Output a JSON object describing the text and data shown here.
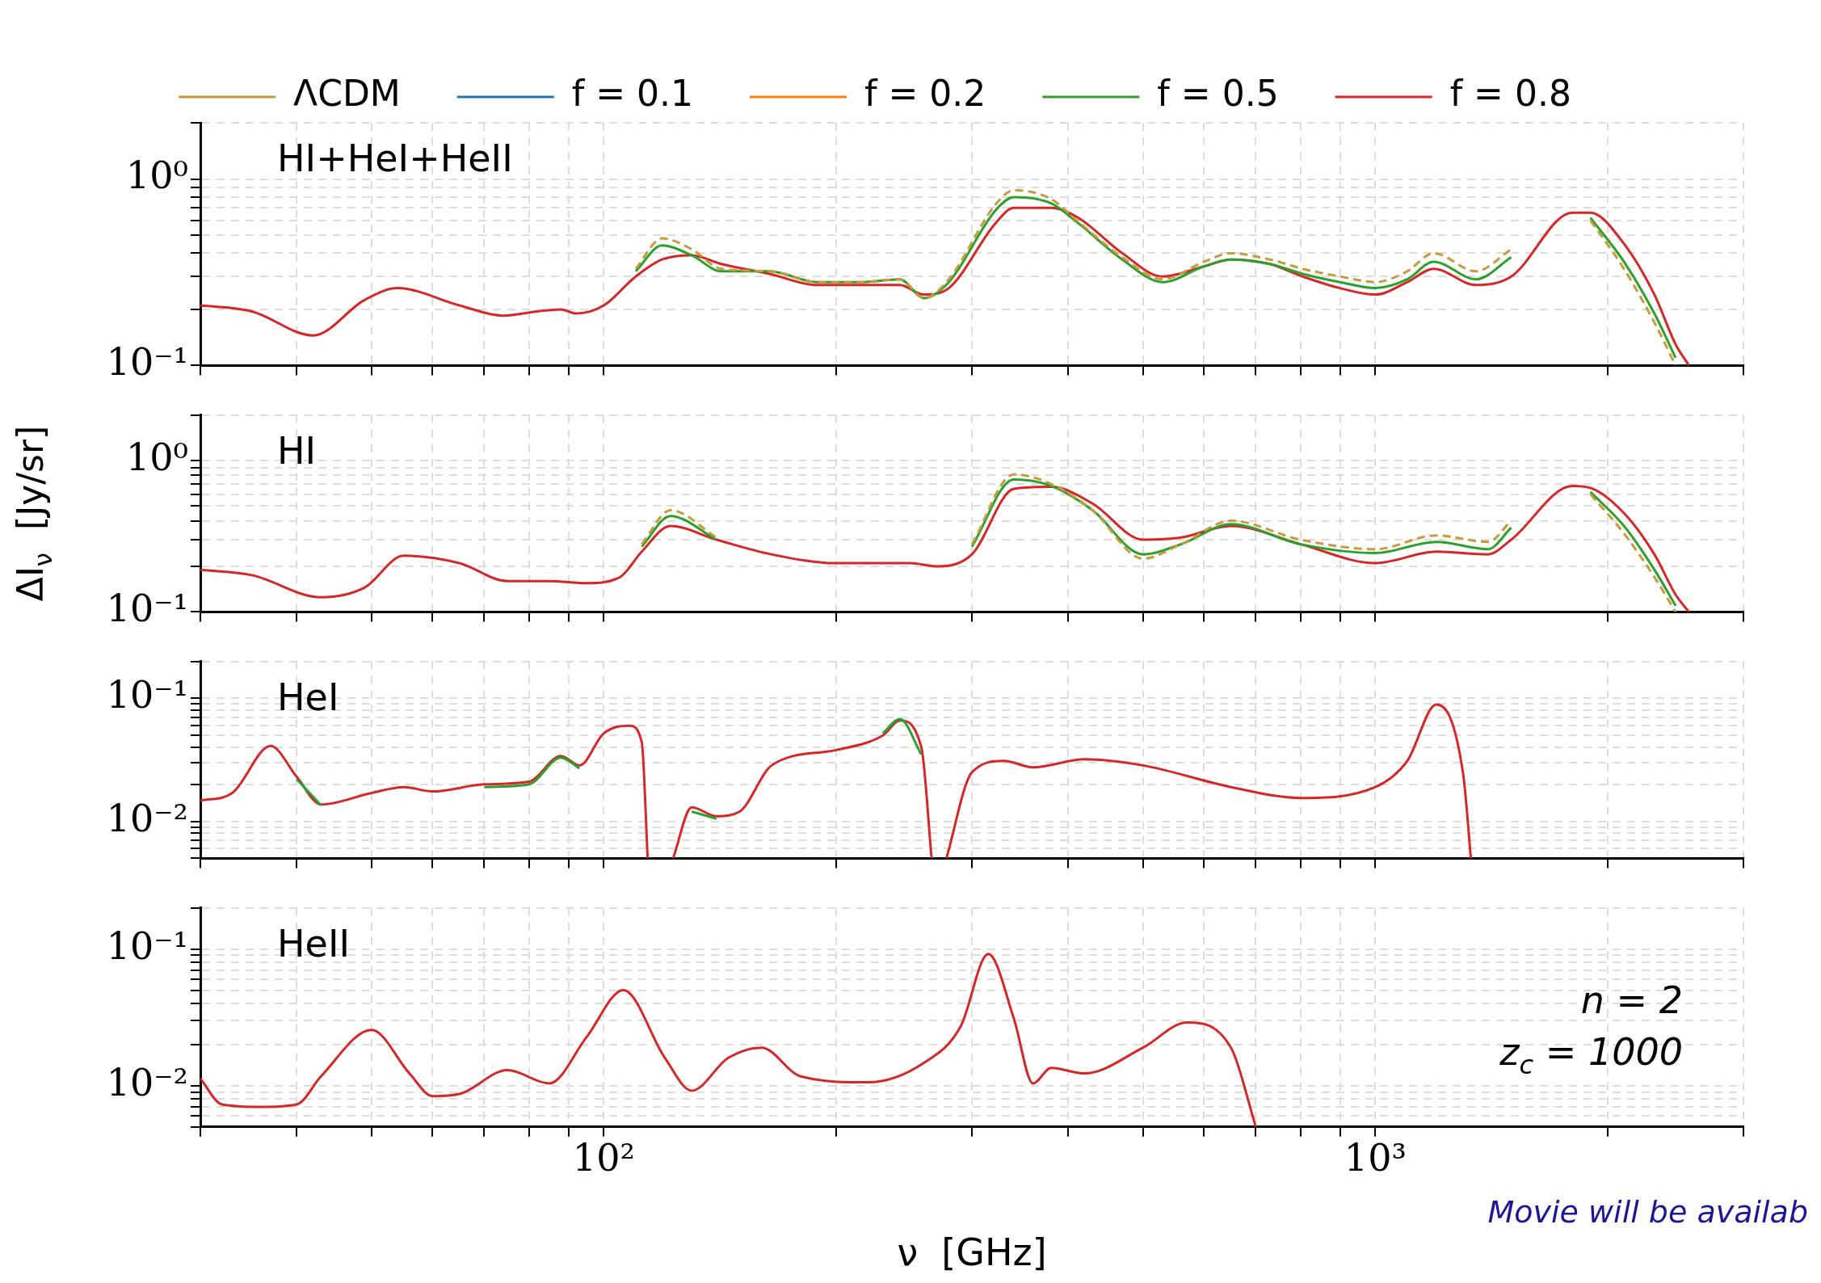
{
  "chart_data": [
    {
      "type": "line",
      "title": "HI+HeI+HeII",
      "legend": "top",
      "log": "xy",
      "grid": true,
      "tick_labels": "y",
      "x": [
        30,
        35,
        42,
        49,
        54,
        65,
        74,
        82,
        88,
        92,
        100,
        110,
        119,
        130,
        142,
        164,
        189,
        215,
        242,
        260,
        280,
        322,
        340,
        380,
        412,
        470,
        530,
        600,
        650,
        730,
        805,
        900,
        1000,
        1100,
        1190,
        1350,
        1500,
        1800,
        1900,
        2100,
        2300,
        2450,
        2550
      ],
      "xlim": [
        30,
        3000
      ],
      "xticks": [
        {
          "value": 30,
          "label": null
        },
        {
          "value": 40,
          "label": null
        },
        {
          "value": 50,
          "label": null
        },
        {
          "value": 60,
          "label": null
        },
        {
          "value": 70,
          "label": null
        },
        {
          "value": 80,
          "label": null
        },
        {
          "value": 90,
          "label": null
        },
        {
          "value": 100,
          "label": null
        },
        {
          "value": 200,
          "label": null
        },
        {
          "value": 300,
          "label": null
        },
        {
          "value": 400,
          "label": null
        },
        {
          "value": 500,
          "label": null
        },
        {
          "value": 600,
          "label": null
        },
        {
          "value": 700,
          "label": null
        },
        {
          "value": 800,
          "label": null
        },
        {
          "value": 900,
          "label": null
        },
        {
          "value": 1000,
          "label": null
        },
        {
          "value": 2000,
          "label": null
        },
        {
          "value": 3000,
          "label": null
        }
      ],
      "ylim": [
        0.1,
        2
      ],
      "yticks": [
        {
          "value": 0.1,
          "label": "10⁻¹"
        },
        {
          "value": 0.2,
          "label": null
        },
        {
          "value": 0.3,
          "label": null
        },
        {
          "value": 0.4,
          "label": null
        },
        {
          "value": 0.5,
          "label": null
        },
        {
          "value": 0.6,
          "label": null
        },
        {
          "value": 0.7,
          "label": null
        },
        {
          "value": 0.8,
          "label": null
        },
        {
          "value": 0.9,
          "label": null
        },
        {
          "value": 1,
          "label": "10⁰"
        },
        {
          "value": 2,
          "label": null
        }
      ],
      "series": [
        {
          "name": "ΛCDM",
          "color": "#c89a3c",
          "line_style": "dashed",
          "values": [
            null,
            null,
            null,
            null,
            null,
            null,
            null,
            null,
            null,
            null,
            null,
            0.33,
            0.48,
            0.42,
            0.33,
            0.32,
            0.28,
            0.28,
            0.29,
            0.23,
            0.29,
            0.73,
            0.87,
            0.78,
            0.59,
            0.38,
            0.29,
            0.36,
            0.4,
            0.37,
            0.33,
            0.3,
            0.28,
            0.32,
            0.4,
            0.32,
            0.42,
            null,
            0.6,
            0.33,
            0.17,
            0.1,
            null
          ]
        },
        {
          "name": "f = 0.1",
          "color": "#1f77b4",
          "values": [
            null,
            null,
            null,
            null,
            null,
            null,
            null,
            null,
            null,
            null,
            null,
            null,
            null,
            null,
            null,
            null,
            null,
            null,
            null,
            null,
            null,
            null,
            null,
            null,
            null,
            null,
            null,
            null,
            null,
            null,
            null,
            null,
            null,
            null,
            null,
            null,
            null,
            null,
            null,
            null,
            null,
            null,
            null
          ]
        },
        {
          "name": "f = 0.2",
          "color": "#ff7f0e",
          "values": [
            null,
            null,
            null,
            null,
            null,
            null,
            null,
            null,
            null,
            null,
            null,
            null,
            null,
            null,
            null,
            null,
            null,
            null,
            null,
            null,
            null,
            null,
            null,
            null,
            null,
            null,
            null,
            null,
            null,
            null,
            null,
            null,
            null,
            null,
            null,
            null,
            null,
            null,
            null,
            null,
            null,
            null,
            null
          ]
        },
        {
          "name": "f = 0.5",
          "color": "#2ca02c",
          "values": [
            null,
            null,
            null,
            null,
            null,
            null,
            null,
            null,
            null,
            null,
            null,
            0.32,
            0.44,
            0.39,
            0.32,
            0.32,
            0.28,
            0.28,
            0.29,
            0.23,
            0.28,
            0.68,
            0.8,
            0.74,
            0.58,
            0.37,
            0.28,
            0.34,
            0.37,
            0.35,
            0.31,
            0.28,
            0.26,
            0.29,
            0.36,
            0.29,
            0.38,
            null,
            0.62,
            0.36,
            0.19,
            0.11,
            null
          ]
        },
        {
          "name": "f = 0.8",
          "color": "#d62728",
          "values": [
            0.21,
            0.195,
            0.145,
            0.225,
            0.26,
            0.21,
            0.185,
            0.195,
            0.2,
            0.19,
            0.21,
            0.3,
            0.37,
            0.39,
            0.35,
            0.31,
            0.27,
            0.27,
            0.27,
            0.24,
            0.26,
            0.58,
            0.7,
            0.7,
            0.62,
            0.4,
            0.3,
            0.34,
            0.37,
            0.35,
            0.3,
            0.26,
            0.24,
            0.28,
            0.33,
            0.27,
            0.3,
            0.66,
            0.66,
            0.45,
            0.24,
            0.13,
            0.1
          ]
        }
      ]
    },
    {
      "type": "line",
      "title": "HI",
      "ylabel": "ΔI$_{ν}$  [Jy/sr]",
      "log": "xy",
      "grid": true,
      "tick_labels": "y",
      "x": [
        30,
        35,
        43,
        49,
        55,
        65,
        75,
        85,
        95,
        105,
        112,
        122,
        140,
        165,
        200,
        250,
        270,
        300,
        340,
        380,
        430,
        500,
        560,
        650,
        800,
        1000,
        1200,
        1400,
        1500,
        1800,
        1900,
        2100,
        2300,
        2450,
        2550
      ],
      "xlim": [
        30,
        3000
      ],
      "xticks": [
        {
          "value": 30,
          "label": null
        },
        {
          "value": 40,
          "label": null
        },
        {
          "value": 50,
          "label": null
        },
        {
          "value": 60,
          "label": null
        },
        {
          "value": 70,
          "label": null
        },
        {
          "value": 80,
          "label": null
        },
        {
          "value": 90,
          "label": null
        },
        {
          "value": 100,
          "label": null
        },
        {
          "value": 200,
          "label": null
        },
        {
          "value": 300,
          "label": null
        },
        {
          "value": 400,
          "label": null
        },
        {
          "value": 500,
          "label": null
        },
        {
          "value": 600,
          "label": null
        },
        {
          "value": 700,
          "label": null
        },
        {
          "value": 800,
          "label": null
        },
        {
          "value": 900,
          "label": null
        },
        {
          "value": 1000,
          "label": null
        },
        {
          "value": 2000,
          "label": null
        },
        {
          "value": 3000,
          "label": null
        }
      ],
      "ylim": [
        0.1,
        2
      ],
      "yticks": [
        {
          "value": 0.1,
          "label": "10⁻¹"
        },
        {
          "value": 0.2,
          "label": null
        },
        {
          "value": 0.3,
          "label": null
        },
        {
          "value": 0.4,
          "label": null
        },
        {
          "value": 0.5,
          "label": null
        },
        {
          "value": 0.6,
          "label": null
        },
        {
          "value": 0.7,
          "label": null
        },
        {
          "value": 0.8,
          "label": null
        },
        {
          "value": 0.9,
          "label": null
        },
        {
          "value": 1,
          "label": "10⁰"
        },
        {
          "value": 2,
          "label": null
        }
      ],
      "series": [
        {
          "color": "#c89a3c",
          "line_style": "dashed",
          "values": [
            null,
            null,
            null,
            null,
            null,
            null,
            null,
            null,
            null,
            null,
            0.28,
            0.47,
            0.31,
            null,
            null,
            null,
            null,
            0.28,
            0.81,
            0.7,
            0.47,
            0.225,
            0.28,
            0.4,
            0.3,
            0.26,
            0.32,
            0.29,
            0.4,
            null,
            0.6,
            0.33,
            0.17,
            0.1,
            null
          ]
        },
        {
          "color": "#2ca02c",
          "values": [
            null,
            null,
            null,
            null,
            null,
            null,
            null,
            null,
            null,
            null,
            0.27,
            0.43,
            0.3,
            null,
            null,
            null,
            null,
            0.27,
            0.75,
            0.68,
            0.47,
            0.24,
            0.28,
            0.38,
            0.28,
            0.245,
            0.29,
            0.26,
            0.36,
            null,
            0.62,
            0.37,
            0.19,
            0.11,
            null
          ]
        },
        {
          "color": "#d62728",
          "values": [
            0.19,
            0.175,
            0.125,
            0.145,
            0.235,
            0.21,
            0.16,
            0.16,
            0.155,
            0.17,
            0.25,
            0.37,
            0.3,
            0.24,
            0.21,
            0.21,
            0.2,
            0.24,
            0.65,
            0.67,
            0.52,
            0.3,
            0.31,
            0.37,
            0.28,
            0.21,
            0.25,
            0.24,
            0.3,
            0.68,
            0.66,
            0.45,
            0.24,
            0.13,
            0.1
          ]
        }
      ]
    },
    {
      "type": "line",
      "title": "HeI",
      "log": "xy",
      "grid": true,
      "tick_labels": "y",
      "x": [
        30,
        33,
        37,
        40,
        43,
        50,
        55,
        60,
        70,
        80,
        88,
        93,
        100,
        108,
        112,
        114,
        117,
        123,
        130,
        140,
        150,
        165,
        200,
        230,
        242,
        258,
        266,
        272,
        278,
        300,
        330,
        360,
        420,
        500,
        650,
        800,
        1000,
        1100,
        1200,
        1300,
        1330
      ],
      "xlim": [
        30,
        3000
      ],
      "xticks": [
        {
          "value": 30,
          "label": null
        },
        {
          "value": 40,
          "label": null
        },
        {
          "value": 50,
          "label": null
        },
        {
          "value": 60,
          "label": null
        },
        {
          "value": 70,
          "label": null
        },
        {
          "value": 80,
          "label": null
        },
        {
          "value": 90,
          "label": null
        },
        {
          "value": 100,
          "label": null
        },
        {
          "value": 200,
          "label": null
        },
        {
          "value": 300,
          "label": null
        },
        {
          "value": 400,
          "label": null
        },
        {
          "value": 500,
          "label": null
        },
        {
          "value": 600,
          "label": null
        },
        {
          "value": 700,
          "label": null
        },
        {
          "value": 800,
          "label": null
        },
        {
          "value": 900,
          "label": null
        },
        {
          "value": 1000,
          "label": null
        },
        {
          "value": 2000,
          "label": null
        },
        {
          "value": 3000,
          "label": null
        }
      ],
      "ylim": [
        0.005,
        0.2
      ],
      "yticks": [
        {
          "value": 0.005,
          "label": null
        },
        {
          "value": 0.006,
          "label": null
        },
        {
          "value": 0.007,
          "label": null
        },
        {
          "value": 0.008,
          "label": null
        },
        {
          "value": 0.009,
          "label": null
        },
        {
          "value": 0.01,
          "label": "10⁻²"
        },
        {
          "value": 0.02,
          "label": null
        },
        {
          "value": 0.03,
          "label": null
        },
        {
          "value": 0.04,
          "label": null
        },
        {
          "value": 0.05,
          "label": null
        },
        {
          "value": 0.06,
          "label": null
        },
        {
          "value": 0.07,
          "label": null
        },
        {
          "value": 0.08,
          "label": null
        },
        {
          "value": 0.09,
          "label": null
        },
        {
          "value": 0.1,
          "label": "10⁻¹"
        },
        {
          "value": 0.2,
          "label": null
        }
      ],
      "series": [
        {
          "color": "#2ca02c",
          "values": [
            null,
            null,
            null,
            0.022,
            0.0135,
            null,
            null,
            null,
            0.019,
            0.02,
            0.033,
            0.027,
            null,
            null,
            null,
            null,
            null,
            null,
            0.012,
            0.0105,
            null,
            null,
            null,
            0.052,
            0.068,
            0.035,
            null,
            null,
            null,
            null,
            null,
            null,
            null,
            null,
            null,
            null,
            null,
            null,
            null,
            null,
            null
          ]
        },
        {
          "color": "#d62728",
          "values": [
            0.0147,
            0.017,
            0.041,
            0.023,
            0.0137,
            0.017,
            0.019,
            0.0175,
            0.02,
            0.021,
            0.034,
            0.0285,
            0.052,
            0.06,
            0.044,
            0.005,
            null,
            0.005,
            0.013,
            0.011,
            0.012,
            0.0285,
            0.038,
            0.05,
            0.066,
            0.04,
            0.005,
            null,
            0.005,
            0.025,
            0.031,
            0.0275,
            0.032,
            0.0285,
            0.019,
            0.0155,
            0.019,
            0.031,
            0.089,
            0.024,
            0.005
          ]
        }
      ]
    },
    {
      "type": "line",
      "title": "HeII",
      "xlabel": "ν  [GHz]",
      "log": "xy",
      "grid": true,
      "annotations": [
        "n = 2",
        "z$_{c}$ = 1000",
        "Movie will be availab"
      ],
      "x": [
        30,
        32,
        36,
        40,
        43,
        50,
        56,
        60,
        65,
        75,
        85,
        95,
        106,
        120,
        130,
        145,
        160,
        180,
        220,
        260,
        290,
        315,
        340,
        360,
        380,
        420,
        500,
        570,
        650,
        700
      ],
      "xlim": [
        30,
        3000
      ],
      "xticks": [
        {
          "value": 30,
          "label": null
        },
        {
          "value": 40,
          "label": null
        },
        {
          "value": 50,
          "label": null
        },
        {
          "value": 60,
          "label": null
        },
        {
          "value": 70,
          "label": null
        },
        {
          "value": 80,
          "label": null
        },
        {
          "value": 90,
          "label": null
        },
        {
          "value": 100,
          "label": "10²"
        },
        {
          "value": 200,
          "label": null
        },
        {
          "value": 300,
          "label": null
        },
        {
          "value": 400,
          "label": null
        },
        {
          "value": 500,
          "label": null
        },
        {
          "value": 600,
          "label": null
        },
        {
          "value": 700,
          "label": null
        },
        {
          "value": 800,
          "label": null
        },
        {
          "value": 900,
          "label": null
        },
        {
          "value": 1000,
          "label": "10³"
        },
        {
          "value": 2000,
          "label": null
        },
        {
          "value": 3000,
          "label": null
        }
      ],
      "ylim": [
        0.005,
        0.2
      ],
      "yticks": [
        {
          "value": 0.005,
          "label": null
        },
        {
          "value": 0.006,
          "label": null
        },
        {
          "value": 0.007,
          "label": null
        },
        {
          "value": 0.008,
          "label": null
        },
        {
          "value": 0.009,
          "label": null
        },
        {
          "value": 0.01,
          "label": "10⁻²"
        },
        {
          "value": 0.02,
          "label": null
        },
        {
          "value": 0.03,
          "label": null
        },
        {
          "value": 0.04,
          "label": null
        },
        {
          "value": 0.05,
          "label": null
        },
        {
          "value": 0.06,
          "label": null
        },
        {
          "value": 0.07,
          "label": null
        },
        {
          "value": 0.08,
          "label": null
        },
        {
          "value": 0.09,
          "label": null
        },
        {
          "value": 0.1,
          "label": "10⁻¹"
        },
        {
          "value": 0.2,
          "label": null
        }
      ],
      "series": [
        {
          "color": "#d62728",
          "values": [
            0.0113,
            0.0073,
            0.007,
            0.0073,
            0.0117,
            0.0256,
            0.0123,
            0.0084,
            0.0087,
            0.013,
            0.0104,
            0.0227,
            0.05,
            0.016,
            0.0092,
            0.016,
            0.019,
            0.0117,
            0.0106,
            0.0147,
            0.027,
            0.092,
            0.031,
            0.0104,
            0.0135,
            0.0123,
            0.019,
            0.029,
            0.019,
            0.005
          ]
        }
      ]
    }
  ]
}
